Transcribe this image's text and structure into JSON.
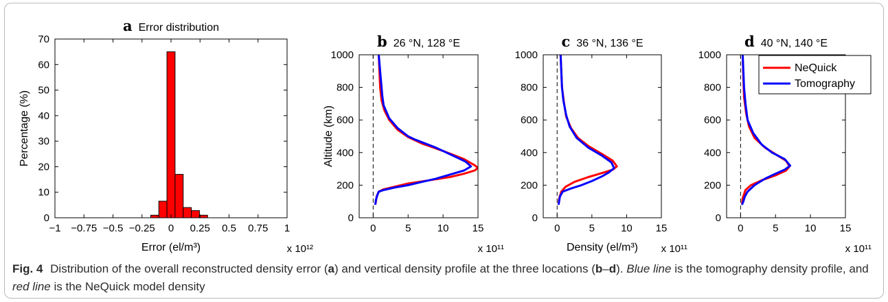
{
  "caption": {
    "label": "Fig. 4",
    "segments": [
      {
        "text": "Distribution of the overall reconstructed density error (",
        "style": "normal"
      },
      {
        "text": "a",
        "style": "bold"
      },
      {
        "text": ") and vertical density profile at the three locations (",
        "style": "normal"
      },
      {
        "text": "b",
        "style": "bold"
      },
      {
        "text": "–",
        "style": "normal"
      },
      {
        "text": "d",
        "style": "bold"
      },
      {
        "text": "). ",
        "style": "normal"
      },
      {
        "text": "Blue line",
        "style": "italic"
      },
      {
        "text": " is the tomography density profile, and ",
        "style": "normal"
      },
      {
        "text": "red line",
        "style": "italic"
      },
      {
        "text": " is the NeQuick model density",
        "style": "normal"
      }
    ]
  },
  "colors": {
    "bar_fill": "#ff0000",
    "nequick": "#ff0000",
    "tomography": "#0000ff",
    "axis": "#000000",
    "frame": "#b9b9b9"
  },
  "chart_data": [
    {
      "panel": "a",
      "type": "bar",
      "title_letter": "a",
      "title": "Error distribution",
      "xlabel": "Error (el/m³)",
      "x_multiplier": "x 10¹²",
      "ylabel": "Percentage (%)",
      "xlim": [
        -1,
        1
      ],
      "ylim": [
        0,
        70
      ],
      "xticks": [
        -1,
        -0.75,
        -0.5,
        -0.25,
        0,
        0.25,
        0.5,
        0.75,
        1
      ],
      "xtick_labels": [
        "−1",
        "−0.75",
        "−0.5",
        "−0.25",
        "0",
        "0.25",
        "0.5",
        "0.75",
        "1"
      ],
      "yticks": [
        0,
        10,
        20,
        30,
        40,
        50,
        60,
        70
      ],
      "ytick_labels": [
        "0",
        "10",
        "20",
        "30",
        "40",
        "50",
        "60",
        "70"
      ],
      "bin_width": 0.07,
      "x": [
        -0.14,
        -0.07,
        0.0,
        0.07,
        0.14,
        0.21,
        0.28
      ],
      "values": [
        1.0,
        6.5,
        65.0,
        17.0,
        4.0,
        2.8,
        1.0
      ]
    },
    {
      "panel": "b",
      "type": "line",
      "title_letter": "b",
      "title": "26 °N, 128 °E",
      "xlabel": "",
      "ylabel": "Altitude (km)",
      "x_multiplier": "x 10¹¹",
      "xlim": [
        -2,
        15
      ],
      "ylim": [
        0,
        1000
      ],
      "xticks": [
        0,
        5,
        10,
        15
      ],
      "yticks": [
        0,
        200,
        400,
        600,
        800,
        1000
      ],
      "zero_line": true,
      "series": [
        {
          "name": "NeQuick",
          "color": "#ff0000",
          "points": [
            [
              0.3,
              80
            ],
            [
              0.4,
              100
            ],
            [
              0.5,
              130
            ],
            [
              0.8,
              160
            ],
            [
              1.5,
              175
            ],
            [
              3,
              190
            ],
            [
              5,
              210
            ],
            [
              8,
              230
            ],
            [
              11,
              250
            ],
            [
              13,
              270
            ],
            [
              14.5,
              290
            ],
            [
              15,
              305
            ],
            [
              14.6,
              320
            ],
            [
              13,
              360
            ],
            [
              10,
              410
            ],
            [
              7,
              455
            ],
            [
              5,
              495
            ],
            [
              3.5,
              540
            ],
            [
              2.3,
              600
            ],
            [
              1.6,
              660
            ],
            [
              1.2,
              720
            ],
            [
              1.0,
              800
            ],
            [
              0.9,
              900
            ],
            [
              0.8,
              1000
            ]
          ]
        },
        {
          "name": "Tomography",
          "color": "#0000ff",
          "points": [
            [
              0.3,
              80
            ],
            [
              0.4,
              110
            ],
            [
              0.6,
              140
            ],
            [
              0.8,
              160
            ],
            [
              1.5,
              170
            ],
            [
              3,
              185
            ],
            [
              5,
              200
            ],
            [
              7,
              220
            ],
            [
              9,
              240
            ],
            [
              11,
              265
            ],
            [
              13,
              290
            ],
            [
              14,
              315
            ],
            [
              13.2,
              345
            ],
            [
              11.5,
              380
            ],
            [
              9,
              430
            ],
            [
              6,
              480
            ],
            [
              5,
              500
            ],
            [
              3.5,
              550
            ],
            [
              2.3,
              610
            ],
            [
              1.5,
              690
            ],
            [
              1.3,
              750
            ],
            [
              1.2,
              800
            ],
            [
              1.0,
              900
            ],
            [
              0.8,
              1000
            ]
          ]
        }
      ]
    },
    {
      "panel": "c",
      "type": "line",
      "title_letter": "c",
      "title": "36 °N, 136 °E",
      "xlabel": "Density (el/m³)",
      "x_multiplier": "x 10¹¹",
      "xlim": [
        -2,
        15
      ],
      "ylim": [
        0,
        1000
      ],
      "xticks": [
        0,
        5,
        10,
        15
      ],
      "yticks": [
        0,
        200,
        400,
        600,
        800,
        1000
      ],
      "zero_line": true,
      "series": [
        {
          "name": "NeQuick",
          "color": "#ff0000",
          "points": [
            [
              0.2,
              80
            ],
            [
              0.3,
              120
            ],
            [
              0.6,
              160
            ],
            [
              1.2,
              190
            ],
            [
              2.5,
              220
            ],
            [
              4.5,
              250
            ],
            [
              6.5,
              275
            ],
            [
              8,
              295
            ],
            [
              8.6,
              315
            ],
            [
              8,
              350
            ],
            [
              6.5,
              390
            ],
            [
              4.5,
              440
            ],
            [
              3,
              490
            ],
            [
              2,
              550
            ],
            [
              1.3,
              620
            ],
            [
              1.0,
              700
            ],
            [
              0.7,
              800
            ],
            [
              0.6,
              900
            ],
            [
              0.5,
              1000
            ]
          ]
        },
        {
          "name": "Tomography",
          "color": "#0000ff",
          "points": [
            [
              0.2,
              80
            ],
            [
              0.4,
              130
            ],
            [
              0.8,
              160
            ],
            [
              2,
              180
            ],
            [
              3.5,
              200
            ],
            [
              5,
              225
            ],
            [
              6.5,
              255
            ],
            [
              7.5,
              280
            ],
            [
              8.2,
              305
            ],
            [
              7.8,
              340
            ],
            [
              6.5,
              380
            ],
            [
              4.5,
              430
            ],
            [
              2.8,
              490
            ],
            [
              1.8,
              560
            ],
            [
              1.3,
              630
            ],
            [
              0.9,
              720
            ],
            [
              0.7,
              800
            ],
            [
              0.6,
              900
            ],
            [
              0.5,
              1000
            ]
          ]
        }
      ]
    },
    {
      "panel": "d",
      "type": "line",
      "title_letter": "d",
      "title": "40 °N, 140 °E",
      "xlabel": "",
      "x_multiplier": "x 10¹¹",
      "xlim": [
        -2,
        15
      ],
      "ylim": [
        0,
        1000
      ],
      "xticks": [
        0,
        5,
        10,
        15
      ],
      "yticks": [
        0,
        200,
        400,
        600,
        800,
        1000
      ],
      "zero_line": true,
      "legend": {
        "position": "top-right",
        "entries": [
          "NeQuick",
          "Tomography"
        ]
      },
      "series": [
        {
          "name": "NeQuick",
          "color": "#ff0000",
          "points": [
            [
              0.2,
              80
            ],
            [
              0.3,
              120
            ],
            [
              0.7,
              170
            ],
            [
              1.5,
              200
            ],
            [
              3,
              230
            ],
            [
              5,
              260
            ],
            [
              6.5,
              290
            ],
            [
              7,
              315
            ],
            [
              6.5,
              350
            ],
            [
              5,
              390
            ],
            [
              3.5,
              430
            ],
            [
              2,
              490
            ],
            [
              1.2,
              560
            ],
            [
              0.8,
              640
            ],
            [
              0.5,
              740
            ],
            [
              0.4,
              850
            ],
            [
              0.3,
              1000
            ]
          ]
        },
        {
          "name": "Tomography",
          "color": "#0000ff",
          "points": [
            [
              0.2,
              80
            ],
            [
              0.4,
              100
            ],
            [
              0.6,
              130
            ],
            [
              1,
              160
            ],
            [
              2,
              200
            ],
            [
              3.5,
              240
            ],
            [
              5,
              270
            ],
            [
              6.3,
              295
            ],
            [
              7.1,
              320
            ],
            [
              6.3,
              360
            ],
            [
              4.5,
              400
            ],
            [
              3,
              450
            ],
            [
              1.8,
              520
            ],
            [
              1.0,
              600
            ],
            [
              0.7,
              700
            ],
            [
              0.5,
              800
            ],
            [
              0.4,
              900
            ],
            [
              0.3,
              1000
            ]
          ]
        }
      ]
    }
  ]
}
